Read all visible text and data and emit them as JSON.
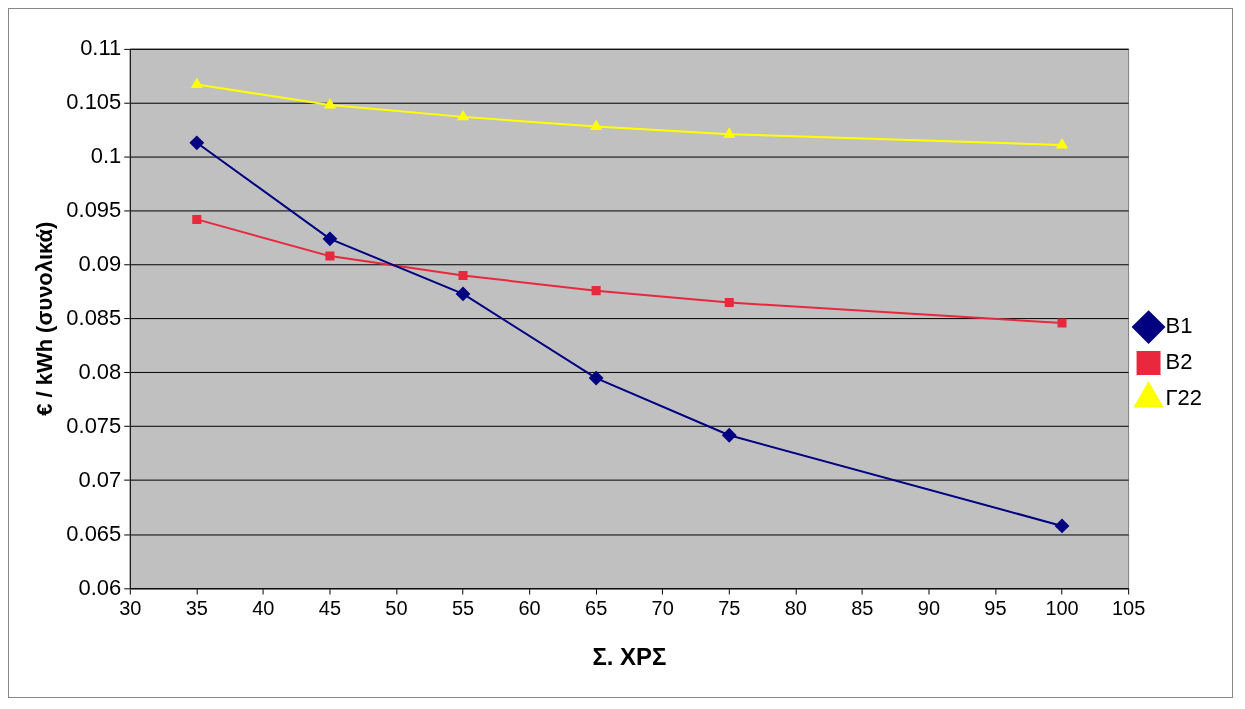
{
  "chart_data": {
    "type": "line",
    "xlabel": "Σ. ΧΡΣ",
    "ylabel": "€ / kWh (συνολικά)",
    "xlim": [
      30,
      105
    ],
    "xticks": [
      30,
      35,
      40,
      45,
      50,
      55,
      60,
      65,
      70,
      75,
      80,
      85,
      90,
      95,
      100,
      105
    ],
    "ylim": [
      0.06,
      0.11
    ],
    "yticks": [
      0.06,
      0.065,
      0.07,
      0.075,
      0.08,
      0.085,
      0.09,
      0.095,
      0.1,
      0.105,
      0.11
    ],
    "grid": "y",
    "legend": "right",
    "x": [
      35,
      45,
      55,
      65,
      75,
      100
    ],
    "series": [
      {
        "name": "B1",
        "color": "#000080",
        "marker": "diamond",
        "values": [
          0.1013,
          0.0924,
          0.0873,
          0.0795,
          0.0742,
          0.0658
        ]
      },
      {
        "name": "B2",
        "color": "#e8283c",
        "marker": "square",
        "values": [
          0.0942,
          0.0908,
          0.089,
          0.0876,
          0.0865,
          0.0846
        ]
      },
      {
        "name": "Γ22",
        "color": "#ffff00",
        "marker": "triangle",
        "values": [
          0.1067,
          0.1048,
          0.1037,
          0.1028,
          0.1021,
          0.1011
        ]
      }
    ]
  }
}
